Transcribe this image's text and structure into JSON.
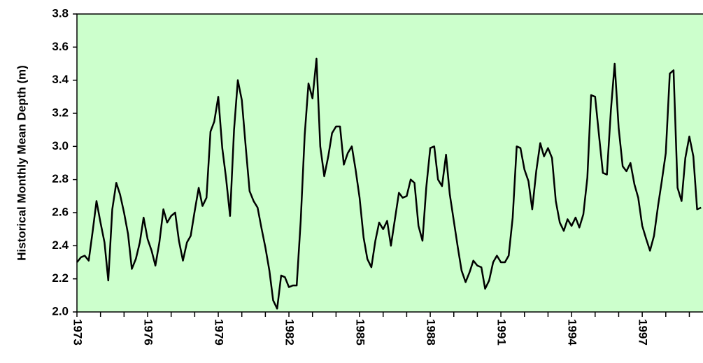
{
  "chart_data": {
    "type": "line",
    "ylabel": "Historical Monthly Mean Depth (m)",
    "x": [
      1973,
      1973.17,
      1973.33,
      1973.5,
      1973.67,
      1973.83,
      1974,
      1974.17,
      1974.33,
      1974.5,
      1974.67,
      1974.83,
      1975,
      1975.17,
      1975.33,
      1975.5,
      1975.67,
      1975.83,
      1976,
      1976.17,
      1976.33,
      1976.5,
      1976.67,
      1976.83,
      1977,
      1977.17,
      1977.33,
      1977.5,
      1977.67,
      1977.83,
      1978,
      1978.17,
      1978.33,
      1978.5,
      1978.67,
      1978.83,
      1979,
      1979.17,
      1979.33,
      1979.5,
      1979.67,
      1979.83,
      1980,
      1980.17,
      1980.33,
      1980.5,
      1980.67,
      1980.83,
      1981,
      1981.17,
      1981.33,
      1981.5,
      1981.67,
      1981.83,
      1982,
      1982.17,
      1982.33,
      1982.5,
      1982.67,
      1982.83,
      1983,
      1983.17,
      1983.33,
      1983.5,
      1983.67,
      1983.83,
      1984,
      1984.17,
      1984.33,
      1984.5,
      1984.67,
      1984.83,
      1985,
      1985.17,
      1985.33,
      1985.5,
      1985.67,
      1985.83,
      1986,
      1986.17,
      1986.33,
      1986.5,
      1986.67,
      1986.83,
      1987,
      1987.17,
      1987.33,
      1987.5,
      1987.67,
      1987.83,
      1988,
      1988.17,
      1988.33,
      1988.5,
      1988.67,
      1988.83,
      1989,
      1989.17,
      1989.33,
      1989.5,
      1989.67,
      1989.83,
      1990,
      1990.17,
      1990.33,
      1990.5,
      1990.67,
      1990.83,
      1991,
      1991.17,
      1991.33,
      1991.5,
      1991.67,
      1991.83,
      1992,
      1992.17,
      1992.33,
      1992.5,
      1992.67,
      1992.83,
      1993,
      1993.17,
      1993.33,
      1993.5,
      1993.67,
      1993.83,
      1994,
      1994.17,
      1994.33,
      1994.5,
      1994.67,
      1994.83,
      1995,
      1995.17,
      1995.33,
      1995.5,
      1995.67,
      1995.83,
      1996,
      1996.17,
      1996.33,
      1996.5,
      1996.67,
      1996.83,
      1997,
      1997.17,
      1997.33,
      1997.5,
      1997.67,
      1997.83,
      1998,
      1998.17,
      1998.33,
      1998.5,
      1998.67,
      1998.83,
      1999,
      1999.17,
      1999.33,
      1999.5
    ],
    "values": [
      2.3,
      2.33,
      2.34,
      2.31,
      2.49,
      2.67,
      2.54,
      2.42,
      2.19,
      2.62,
      2.78,
      2.71,
      2.6,
      2.47,
      2.26,
      2.32,
      2.42,
      2.57,
      2.44,
      2.37,
      2.28,
      2.42,
      2.62,
      2.54,
      2.58,
      2.6,
      2.43,
      2.31,
      2.42,
      2.46,
      2.61,
      2.75,
      2.64,
      2.69,
      3.09,
      3.15,
      3.3,
      2.99,
      2.81,
      2.58,
      3.1,
      3.4,
      3.28,
      2.99,
      2.73,
      2.67,
      2.63,
      2.51,
      2.39,
      2.25,
      2.07,
      2.02,
      2.22,
      2.21,
      2.15,
      2.16,
      2.16,
      2.55,
      3.07,
      3.38,
      3.29,
      3.53,
      3.0,
      2.82,
      2.94,
      3.08,
      3.12,
      3.12,
      2.89,
      2.96,
      3.0,
      2.86,
      2.69,
      2.45,
      2.32,
      2.27,
      2.43,
      2.54,
      2.5,
      2.55,
      2.4,
      2.56,
      2.72,
      2.69,
      2.7,
      2.8,
      2.78,
      2.52,
      2.43,
      2.75,
      2.99,
      3.0,
      2.8,
      2.76,
      2.95,
      2.71,
      2.55,
      2.39,
      2.25,
      2.18,
      2.24,
      2.31,
      2.28,
      2.27,
      2.14,
      2.19,
      2.3,
      2.34,
      2.3,
      2.3,
      2.34,
      2.57,
      3.0,
      2.99,
      2.86,
      2.79,
      2.62,
      2.85,
      3.02,
      2.94,
      2.99,
      2.93,
      2.67,
      2.54,
      2.49,
      2.56,
      2.52,
      2.57,
      2.51,
      2.59,
      2.81,
      3.31,
      3.3,
      3.06,
      2.84,
      2.83,
      3.22,
      3.5,
      3.11,
      2.88,
      2.85,
      2.9,
      2.77,
      2.69,
      2.52,
      2.44,
      2.37,
      2.46,
      2.64,
      2.79,
      2.96,
      3.44,
      3.46,
      2.75,
      2.67,
      2.93,
      3.06,
      2.94,
      2.62,
      2.63
    ],
    "color": "#000000",
    "background": "#ccffcc",
    "xlim": [
      1973,
      1999.58
    ],
    "xticks": [
      1973,
      1976,
      1979,
      1982,
      1985,
      1988,
      1991,
      1994,
      1997
    ],
    "xminorticks": [
      1974,
      1975,
      1977,
      1978,
      1980,
      1981,
      1983,
      1984,
      1986,
      1987,
      1989,
      1990,
      1992,
      1993,
      1995,
      1996,
      1998,
      1999
    ],
    "ylim": [
      2.0,
      3.8
    ],
    "yticks": [
      {
        "value": 2.0,
        "label": "2.0"
      },
      2.2,
      2.4,
      2.6,
      2.8,
      {
        "value": 3.0,
        "label": "3.0"
      },
      3.2,
      3.4,
      3.6,
      3.8
    ]
  }
}
